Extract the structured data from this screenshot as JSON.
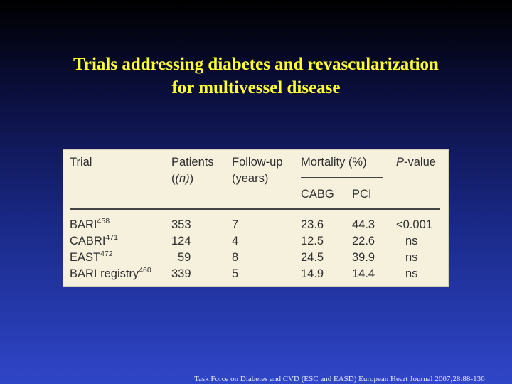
{
  "slide": {
    "title_line1": "Trials addressing diabetes and revascularization",
    "title_line2": "for multivessel disease",
    "footnote": "Task Force on Diabetes and CVD (ESC and EASD) European Heart Journal 2007;28:88-136"
  },
  "table": {
    "headers": {
      "trial": "Trial",
      "patients": "Patients",
      "patients_n": "(n)",
      "followup": "Follow-up",
      "followup_unit": "(years)",
      "mortality": "Mortality (%)",
      "cabg": "CABG",
      "pci": "PCI",
      "p_letter": "P",
      "p_rest": "-value"
    },
    "rows": [
      {
        "trial": "BARI",
        "ref": "458",
        "patients": "353",
        "followup": "7",
        "cabg": "23.6",
        "pci": "44.3",
        "p": "<0.001"
      },
      {
        "trial": "CABRI",
        "ref": "471",
        "patients": "124",
        "followup": "4",
        "cabg": "12.5",
        "pci": "22.6",
        "p": "ns"
      },
      {
        "trial": "EAST",
        "ref": "472",
        "patients": "59",
        "followup": "8",
        "cabg": "24.5",
        "pci": "39.9",
        "p": "ns"
      },
      {
        "trial": "BARI registry",
        "ref": "460",
        "patients": "339",
        "followup": "5",
        "cabg": "14.9",
        "pci": "14.4",
        "p": "ns"
      }
    ]
  }
}
